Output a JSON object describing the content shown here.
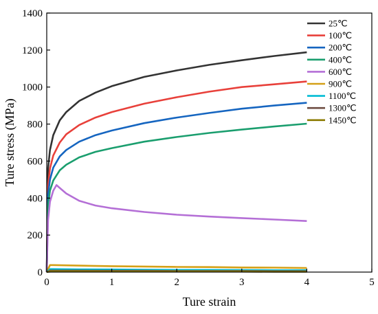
{
  "chart_data": {
    "type": "line",
    "xlabel": "Ture strain",
    "ylabel": "Ture stress (MPa)",
    "xlim": [
      0,
      5
    ],
    "ylim": [
      0,
      1400
    ],
    "xticks": [
      "0",
      "1",
      "2",
      "3",
      "4",
      "5"
    ],
    "yticks": [
      "0",
      "200",
      "400",
      "600",
      "800",
      "1000",
      "1200",
      "1400"
    ],
    "grid": false,
    "legend_position": "top-right",
    "series": [
      {
        "name": "25℃",
        "color": "#333333",
        "x": [
          0,
          0.02,
          0.05,
          0.1,
          0.2,
          0.3,
          0.5,
          0.75,
          1,
          1.5,
          2,
          2.5,
          3,
          3.5,
          4
        ],
        "y": [
          0,
          560,
          660,
          740,
          820,
          865,
          925,
          970,
          1005,
          1055,
          1090,
          1120,
          1145,
          1168,
          1188
        ]
      },
      {
        "name": "100℃",
        "color": "#e8403a",
        "x": [
          0,
          0.02,
          0.05,
          0.1,
          0.2,
          0.3,
          0.5,
          0.75,
          1,
          1.5,
          2,
          2.5,
          3,
          3.5,
          4
        ],
        "y": [
          0,
          470,
          560,
          630,
          700,
          745,
          795,
          835,
          865,
          910,
          945,
          975,
          1000,
          1015,
          1030
        ]
      },
      {
        "name": "200℃",
        "color": "#1565c0",
        "x": [
          0,
          0.02,
          0.05,
          0.1,
          0.2,
          0.3,
          0.5,
          0.75,
          1,
          1.5,
          2,
          2.5,
          3,
          3.5,
          4
        ],
        "y": [
          0,
          420,
          500,
          565,
          625,
          660,
          705,
          740,
          765,
          805,
          835,
          860,
          883,
          900,
          915
        ]
      },
      {
        "name": "400℃",
        "color": "#1a9e6e",
        "x": [
          0,
          0.02,
          0.05,
          0.1,
          0.2,
          0.3,
          0.5,
          0.75,
          1,
          1.5,
          2,
          2.5,
          3,
          3.5,
          4
        ],
        "y": [
          0,
          360,
          440,
          495,
          550,
          580,
          620,
          650,
          670,
          705,
          730,
          752,
          770,
          787,
          802
        ]
      },
      {
        "name": "600℃",
        "color": "#b46fd6",
        "x": [
          0,
          0.02,
          0.05,
          0.1,
          0.15,
          0.2,
          0.3,
          0.5,
          0.75,
          1,
          1.5,
          2,
          2.5,
          3,
          3.5,
          4
        ],
        "y": [
          0,
          280,
          380,
          440,
          470,
          455,
          425,
          385,
          360,
          345,
          325,
          310,
          300,
          292,
          284,
          276
        ]
      },
      {
        "name": "900℃",
        "color": "#d4a017",
        "x": [
          0,
          0.05,
          0.1,
          0.5,
          1,
          1.5,
          2,
          2.5,
          3,
          3.5,
          4
        ],
        "y": [
          0,
          38,
          38,
          35,
          32,
          30,
          28,
          27,
          25,
          24,
          22
        ]
      },
      {
        "name": "1100℃",
        "color": "#00bcd4",
        "x": [
          0,
          0.05,
          0.1,
          0.5,
          1,
          1.5,
          2,
          2.5,
          3,
          3.5,
          4
        ],
        "y": [
          0,
          16,
          16,
          15,
          14,
          13,
          12,
          12,
          11,
          10,
          10
        ]
      },
      {
        "name": "1300℃",
        "color": "#6d4c41",
        "x": [
          0,
          0.05,
          0.1,
          0.5,
          1,
          1.5,
          2,
          2.5,
          3,
          3.5,
          4
        ],
        "y": [
          0,
          8,
          8,
          8,
          7,
          7,
          6,
          6,
          6,
          5,
          5
        ]
      },
      {
        "name": "1450℃",
        "color": "#8a7a00",
        "x": [
          0,
          0.05,
          0.1,
          0.5,
          1,
          1.5,
          2,
          2.5,
          3,
          3.5,
          4
        ],
        "y": [
          0,
          4,
          4,
          4,
          3,
          3,
          3,
          3,
          3,
          2,
          2
        ]
      }
    ]
  }
}
